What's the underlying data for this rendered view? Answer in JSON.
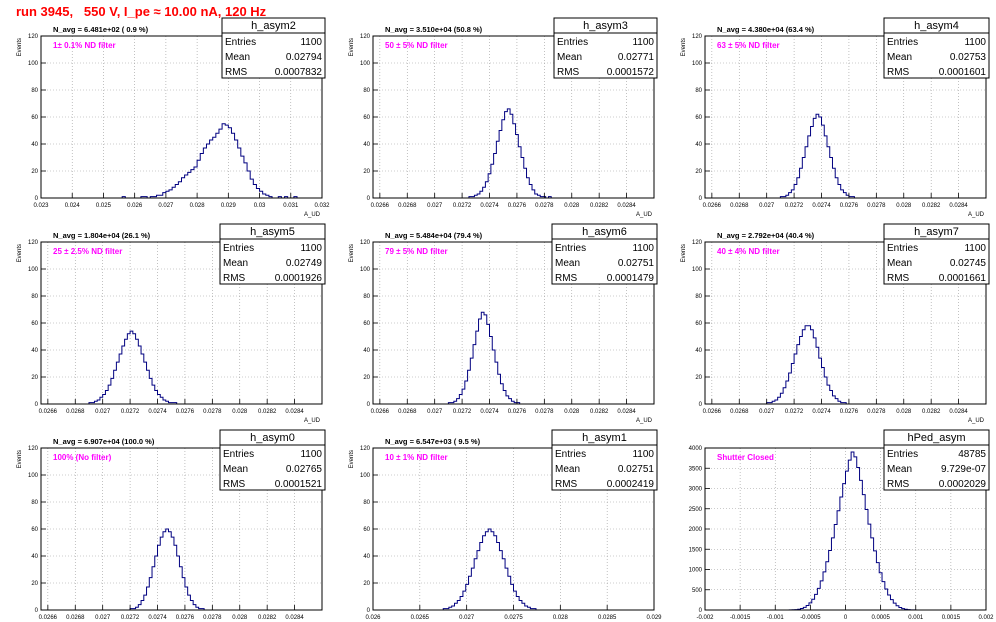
{
  "run_title": "run 3945,   550 V, I_pe ≈ 10.00 nA, 120 Hz",
  "colors": {
    "histogram": "#000080",
    "title": "#ff0000",
    "filter_label": "#ff00ff",
    "grid": "#999999"
  },
  "chart_data": [
    {
      "type": "histogram",
      "name": "h_asym2",
      "stats": {
        "entries_label": "Entries",
        "entries": "1100",
        "mean_label": "Mean",
        "mean": "0.02794",
        "rms_label": "RMS",
        "rms": "0.0007832"
      },
      "n_avg": "N_avg = 6.481e+02 ( 0.9 %)",
      "filter": "1± 0.1% ND filter",
      "xlabel": "A_UD",
      "ylabel": "Events",
      "xlim": [
        0.023,
        0.032
      ],
      "ylim": [
        0,
        120
      ],
      "xticks": [
        0.023,
        0.024,
        0.025,
        0.026,
        0.027,
        0.028,
        0.029,
        0.03,
        0.031,
        0.032
      ],
      "xticklabels": [
        "0.023",
        "0.024",
        "0.025",
        "0.026",
        "0.027",
        "0.028",
        "0.029",
        "0.03",
        "0.031",
        "0.032"
      ],
      "yticks": [
        0,
        20,
        40,
        60,
        80,
        100,
        120
      ],
      "yticklabels": [
        "0",
        "20",
        "40",
        "60",
        "80",
        "100",
        "120"
      ],
      "bins": {
        "x0": 0.0256,
        "width": 0.0001,
        "values": [
          1,
          0,
          0,
          0,
          0,
          0,
          1,
          1,
          0,
          1,
          1,
          2,
          2,
          4,
          5,
          6,
          8,
          10,
          12,
          15,
          17,
          19,
          21,
          23,
          28,
          33,
          37,
          40,
          43,
          45,
          48,
          51,
          55,
          54,
          52,
          48,
          43,
          37,
          31,
          26,
          20,
          14,
          10,
          7,
          5,
          3,
          2,
          1,
          0,
          0,
          1,
          0,
          1,
          0,
          0,
          1
        ]
      }
    },
    {
      "type": "histogram",
      "name": "h_asym3",
      "stats": {
        "entries_label": "Entries",
        "entries": "1100",
        "mean_label": "Mean",
        "mean": "0.02771",
        "rms_label": "RMS",
        "rms": "0.0001572"
      },
      "n_avg": "N_avg = 3.510e+04 (50.8 %)",
      "filter": "50 ± 5% ND filter",
      "xlabel": "A_UD",
      "ylabel": "Events",
      "xlim": [
        0.02655,
        0.0286
      ],
      "ylim": [
        0,
        120
      ],
      "xticks": [
        0.0266,
        0.0268,
        0.027,
        0.0272,
        0.0274,
        0.0276,
        0.0278,
        0.028,
        0.0282,
        0.0284
      ],
      "xticklabels": [
        "0.0266",
        "0.0268",
        "0.027",
        "0.0272",
        "0.0274",
        "0.0276",
        "0.0278",
        "0.028",
        "0.0282",
        "0.0284"
      ],
      "yticks": [
        0,
        20,
        40,
        60,
        80,
        100,
        120
      ],
      "yticklabels": [
        "0",
        "20",
        "40",
        "60",
        "80",
        "100",
        "120"
      ],
      "bins": {
        "x0": 0.02725,
        "width": 2e-05,
        "values": [
          1,
          1,
          2,
          3,
          5,
          8,
          12,
          18,
          25,
          33,
          42,
          50,
          58,
          64,
          66,
          62,
          55,
          47,
          38,
          30,
          22,
          15,
          10,
          6,
          3,
          2,
          1,
          1,
          0,
          1
        ]
      }
    },
    {
      "type": "histogram",
      "name": "h_asym4",
      "stats": {
        "entries_label": "Entries",
        "entries": "1100",
        "mean_label": "Mean",
        "mean": "0.02753",
        "rms_label": "RMS",
        "rms": "0.0001601"
      },
      "n_avg": "N_avg = 4.380e+04 (63.4 %)",
      "filter": "63 ± 5% ND filter",
      "xlabel": "A_UD",
      "ylabel": "Events",
      "xlim": [
        0.02655,
        0.0286
      ],
      "ylim": [
        0,
        120
      ],
      "xticks": [
        0.0266,
        0.0268,
        0.027,
        0.0272,
        0.0274,
        0.0276,
        0.0278,
        0.028,
        0.0282,
        0.0284
      ],
      "xticklabels": [
        "0.0266",
        "0.0268",
        "0.027",
        "0.0272",
        "0.0274",
        "0.0276",
        "0.0278",
        "0.028",
        "0.0282",
        "0.0284"
      ],
      "yticks": [
        0,
        20,
        40,
        60,
        80,
        100,
        120
      ],
      "yticklabels": [
        "0",
        "20",
        "40",
        "60",
        "80",
        "100",
        "120"
      ],
      "bins": {
        "x0": 0.0271,
        "width": 2e-05,
        "values": [
          1,
          1,
          2,
          4,
          6,
          10,
          15,
          22,
          30,
          38,
          46,
          53,
          59,
          62,
          60,
          54,
          46,
          38,
          30,
          22,
          15,
          10,
          6,
          4,
          2,
          1,
          1
        ]
      }
    },
    {
      "type": "histogram",
      "name": "h_asym5",
      "stats": {
        "entries_label": "Entries",
        "entries": "1100",
        "mean_label": "Mean",
        "mean": "0.02749",
        "rms_label": "RMS",
        "rms": "0.0001926"
      },
      "n_avg": "N_avg = 1.804e+04 (26.1 %)",
      "filter": "25 ± 2.5% ND filter",
      "xlabel": "A_UD",
      "ylabel": "Events",
      "xlim": [
        0.02655,
        0.0286
      ],
      "ylim": [
        0,
        120
      ],
      "xticks": [
        0.0266,
        0.0268,
        0.027,
        0.0272,
        0.0274,
        0.0276,
        0.0278,
        0.028,
        0.0282,
        0.0284
      ],
      "xticklabels": [
        "0.0266",
        "0.0268",
        "0.027",
        "0.0272",
        "0.0274",
        "0.0276",
        "0.0278",
        "0.028",
        "0.0282",
        "0.0284"
      ],
      "yticks": [
        0,
        20,
        40,
        60,
        80,
        100,
        120
      ],
      "yticklabels": [
        "0",
        "20",
        "40",
        "60",
        "80",
        "100",
        "120"
      ],
      "bins": {
        "x0": 0.0269,
        "width": 2e-05,
        "values": [
          1,
          1,
          2,
          3,
          5,
          7,
          10,
          14,
          19,
          25,
          31,
          37,
          43,
          48,
          52,
          54,
          52,
          48,
          43,
          37,
          31,
          25,
          19,
          14,
          10,
          7,
          5,
          3,
          2,
          1,
          1,
          1
        ]
      }
    },
    {
      "type": "histogram",
      "name": "h_asym6",
      "stats": {
        "entries_label": "Entries",
        "entries": "1100",
        "mean_label": "Mean",
        "mean": "0.02751",
        "rms_label": "RMS",
        "rms": "0.0001479"
      },
      "n_avg": "N_avg = 5.484e+04 (79.4 %)",
      "filter": "79 ± 5% ND filter",
      "xlabel": "A_UD",
      "ylabel": "Events",
      "xlim": [
        0.02655,
        0.0286
      ],
      "ylim": [
        0,
        120
      ],
      "xticks": [
        0.0266,
        0.0268,
        0.027,
        0.0272,
        0.0274,
        0.0276,
        0.0278,
        0.028,
        0.0282,
        0.0284
      ],
      "xticklabels": [
        "0.0266",
        "0.0268",
        "0.027",
        "0.0272",
        "0.0274",
        "0.0276",
        "0.0278",
        "0.028",
        "0.0282",
        "0.0284"
      ],
      "yticks": [
        0,
        20,
        40,
        60,
        80,
        100,
        120
      ],
      "yticklabels": [
        "0",
        "20",
        "40",
        "60",
        "80",
        "100",
        "120"
      ],
      "bins": {
        "x0": 0.0271,
        "width": 2e-05,
        "values": [
          1,
          1,
          2,
          4,
          7,
          11,
          17,
          25,
          34,
          44,
          54,
          63,
          68,
          66,
          59,
          50,
          40,
          31,
          22,
          15,
          10,
          6,
          4,
          2,
          1,
          1
        ]
      }
    },
    {
      "type": "histogram",
      "name": "h_asym7",
      "stats": {
        "entries_label": "Entries",
        "entries": "1100",
        "mean_label": "Mean",
        "mean": "0.02745",
        "rms_label": "RMS",
        "rms": "0.0001661"
      },
      "n_avg": "N_avg = 2.792e+04 (40.4 %)",
      "filter": "40 ± 4% ND filter",
      "xlabel": "A_UD",
      "ylabel": "Events",
      "xlim": [
        0.02655,
        0.0286
      ],
      "ylim": [
        0,
        120
      ],
      "xticks": [
        0.0266,
        0.0268,
        0.027,
        0.0272,
        0.0274,
        0.0276,
        0.0278,
        0.028,
        0.0282,
        0.0284
      ],
      "xticklabels": [
        "0.0266",
        "0.0268",
        "0.027",
        "0.0272",
        "0.0274",
        "0.0276",
        "0.0278",
        "0.028",
        "0.0282",
        "0.0284"
      ],
      "yticks": [
        0,
        20,
        40,
        60,
        80,
        100,
        120
      ],
      "yticklabels": [
        "0",
        "20",
        "40",
        "60",
        "80",
        "100",
        "120"
      ],
      "bins": {
        "x0": 0.027,
        "width": 2e-05,
        "values": [
          1,
          1,
          2,
          3,
          5,
          8,
          12,
          17,
          23,
          30,
          37,
          44,
          50,
          55,
          58,
          58,
          55,
          49,
          42,
          34,
          27,
          20,
          14,
          10,
          6,
          4,
          2,
          1,
          1
        ]
      }
    },
    {
      "type": "histogram",
      "name": "h_asym0",
      "stats": {
        "entries_label": "Entries",
        "entries": "1100",
        "mean_label": "Mean",
        "mean": "0.02765",
        "rms_label": "RMS",
        "rms": "0.0001521"
      },
      "n_avg": "N_avg = 6.907e+04 (100.0 %)",
      "filter": "100% (No filter)",
      "xlabel": "A_UD",
      "ylabel": "Events",
      "xlim": [
        0.02655,
        0.0286
      ],
      "ylim": [
        0,
        120
      ],
      "xticks": [
        0.0266,
        0.0268,
        0.027,
        0.0272,
        0.0274,
        0.0276,
        0.0278,
        0.028,
        0.0282,
        0.0284
      ],
      "xticklabels": [
        "0.0266",
        "0.0268",
        "0.027",
        "0.0272",
        "0.0274",
        "0.0276",
        "0.0278",
        "0.028",
        "0.0282",
        "0.0284"
      ],
      "yticks": [
        0,
        20,
        40,
        60,
        80,
        100,
        120
      ],
      "yticklabels": [
        "0",
        "20",
        "40",
        "60",
        "80",
        "100",
        "120"
      ],
      "bins": {
        "x0": 0.0272,
        "width": 2e-05,
        "values": [
          1,
          1,
          2,
          4,
          7,
          11,
          17,
          24,
          32,
          40,
          48,
          54,
          58,
          60,
          58,
          54,
          48,
          40,
          32,
          24,
          17,
          11,
          7,
          4,
          2,
          1,
          1
        ]
      }
    },
    {
      "type": "histogram",
      "name": "h_asym1",
      "stats": {
        "entries_label": "Entries",
        "entries": "1100",
        "mean_label": "Mean",
        "mean": "0.02751",
        "rms_label": "RMS",
        "rms": "0.0002419"
      },
      "n_avg": "N_avg = 6.547e+03 ( 9.5 %)",
      "filter": "10 ± 1% ND filter",
      "xlabel": "A_UD",
      "ylabel": "Events",
      "xlim": [
        0.026,
        0.029
      ],
      "ylim": [
        0,
        120
      ],
      "xticks": [
        0.026,
        0.0265,
        0.027,
        0.0275,
        0.028,
        0.0285,
        0.029
      ],
      "xticklabels": [
        "0.026",
        "0.0265",
        "0.027",
        "0.0275",
        "0.028",
        "0.0285",
        "0.029"
      ],
      "yticks": [
        0,
        20,
        40,
        60,
        80,
        100,
        120
      ],
      "yticklabels": [
        "0",
        "20",
        "40",
        "60",
        "80",
        "100",
        "120"
      ],
      "bins": {
        "x0": 0.02675,
        "width": 3e-05,
        "values": [
          1,
          1,
          2,
          3,
          5,
          7,
          10,
          14,
          19,
          25,
          31,
          38,
          44,
          50,
          55,
          58,
          60,
          58,
          55,
          50,
          44,
          38,
          31,
          25,
          19,
          14,
          10,
          7,
          5,
          3,
          2,
          1,
          1
        ]
      }
    },
    {
      "type": "histogram",
      "name": "hPed_asym",
      "stats": {
        "entries_label": "Entries",
        "entries": "48785",
        "mean_label": "Mean",
        "mean": "9.729e-07",
        "rms_label": "RMS",
        "rms": "0.0002029"
      },
      "n_avg": "",
      "filter": "Shutter Closed",
      "xlabel": "A_UD",
      "ylabel": "",
      "xlim": [
        -0.002,
        0.002
      ],
      "ylim": [
        0,
        4000
      ],
      "xticks": [
        -0.002,
        -0.0015,
        -0.001,
        -0.0005,
        0,
        0.0005,
        0.001,
        0.0015,
        0.002
      ],
      "xticklabels": [
        "-0.002",
        "-0.0015",
        "-0.001",
        "-0.0005",
        "0",
        "0.0005",
        "0.001",
        "0.0015",
        "0.002"
      ],
      "yticks": [
        0,
        500,
        1000,
        1500,
        2000,
        2500,
        3000,
        3500,
        4000
      ],
      "yticklabels": [
        "0",
        "500",
        "1000",
        "1500",
        "2000",
        "2500",
        "3000",
        "3500",
        "4000"
      ],
      "bins": {
        "x0": -0.0008,
        "width": 4e-05,
        "values": [
          2,
          5,
          10,
          20,
          38,
          65,
          110,
          175,
          265,
          385,
          535,
          720,
          940,
          1190,
          1470,
          1780,
          2110,
          2450,
          2790,
          3120,
          3430,
          3700,
          3900,
          3780,
          3520,
          3200,
          2850,
          2480,
          2120,
          1780,
          1460,
          1170,
          920,
          700,
          520,
          370,
          255,
          170,
          105,
          62,
          35,
          18,
          9,
          4,
          2,
          1
        ]
      }
    }
  ]
}
